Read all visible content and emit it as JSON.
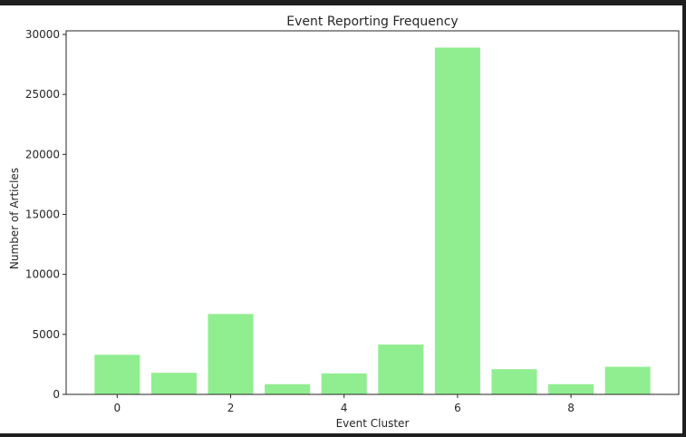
{
  "chart_data": {
    "type": "bar",
    "title": "Event Reporting Frequency",
    "xlabel": "Event Cluster",
    "ylabel": "Number of Articles",
    "categories": [
      0,
      1,
      2,
      3,
      4,
      5,
      6,
      7,
      8,
      9
    ],
    "values": [
      3300,
      1800,
      6700,
      850,
      1750,
      4150,
      28900,
      2100,
      850,
      2300
    ],
    "x_ticks": [
      0,
      2,
      4,
      6,
      8
    ],
    "y_ticks": [
      0,
      5000,
      10000,
      15000,
      20000,
      25000,
      30000
    ],
    "xlim": [
      -0.9,
      9.9
    ],
    "ylim": [
      0,
      30300
    ],
    "grid": false,
    "bar_color": "#90ee90"
  }
}
